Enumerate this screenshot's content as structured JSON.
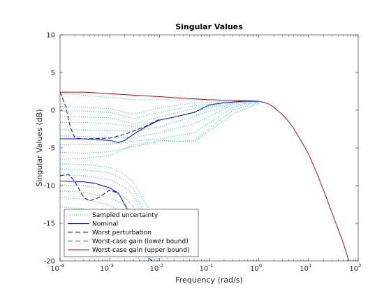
{
  "chart_data": {
    "type": "line",
    "title": "Singular Values",
    "xlabel": "Frequency (rad/s)",
    "ylabel": "Singular Values (dB)",
    "xscale": "log",
    "xlim": [
      0.0001,
      100
    ],
    "ylim": [
      -20,
      10
    ],
    "x_ticks": [
      {
        "value": 0.0001,
        "base": "10",
        "exp": "-4"
      },
      {
        "value": 0.001,
        "base": "10",
        "exp": "-3"
      },
      {
        "value": 0.01,
        "base": "10",
        "exp": "-2"
      },
      {
        "value": 0.1,
        "base": "10",
        "exp": "-1"
      },
      {
        "value": 1,
        "base": "10",
        "exp": "0"
      },
      {
        "value": 10,
        "base": "10",
        "exp": "1"
      },
      {
        "value": 100,
        "base": "10",
        "exp": "2"
      }
    ],
    "y_ticks": [
      {
        "value": 10,
        "label": "10"
      },
      {
        "value": 5,
        "label": "5"
      },
      {
        "value": 0,
        "label": "0"
      },
      {
        "value": -5,
        "label": "-5"
      },
      {
        "value": -10,
        "label": "-10"
      },
      {
        "value": -15,
        "label": "-15"
      },
      {
        "value": -20,
        "label": "-20"
      }
    ],
    "grid": false,
    "legend_position": "bottom-left",
    "series": [
      {
        "name": "Sampled uncertainty",
        "color": "#00bfbf",
        "style": "dotted",
        "curves": [
          [
            [
              0.0001,
              2.3
            ],
            [
              0.0003,
              2.0
            ],
            [
              0.001,
              1.7
            ],
            [
              0.003,
              1.4
            ],
            [
              0.01,
              1.4
            ],
            [
              0.05,
              1.4
            ],
            [
              0.3,
              1.3
            ],
            [
              1,
              1.2
            ]
          ],
          [
            [
              0.0001,
              0.5
            ],
            [
              0.0003,
              0.4
            ],
            [
              0.001,
              0.2
            ],
            [
              0.003,
              -0.5
            ],
            [
              0.01,
              0.3
            ],
            [
              0.05,
              1.0
            ],
            [
              0.3,
              1.2
            ],
            [
              1,
              1.2
            ]
          ],
          [
            [
              0.0001,
              -0.1
            ],
            [
              0.0003,
              -0.1
            ],
            [
              0.001,
              -0.3
            ],
            [
              0.003,
              -1.1
            ],
            [
              0.01,
              -0.3
            ],
            [
              0.05,
              0.6
            ],
            [
              0.3,
              1.1
            ],
            [
              1,
              1.2
            ]
          ],
          [
            [
              0.0001,
              -0.9
            ],
            [
              0.0003,
              -0.9
            ],
            [
              0.001,
              -1.0
            ],
            [
              0.003,
              -1.8
            ],
            [
              0.01,
              -0.9
            ],
            [
              0.05,
              0.2
            ],
            [
              0.3,
              1.1
            ],
            [
              1,
              1.2
            ]
          ],
          [
            [
              0.0001,
              -1.6
            ],
            [
              0.0003,
              -1.6
            ],
            [
              0.001,
              -1.8
            ],
            [
              0.003,
              -2.2
            ],
            [
              0.01,
              -1.4
            ],
            [
              0.05,
              -0.2
            ],
            [
              0.3,
              1.0
            ],
            [
              1,
              1.2
            ]
          ],
          [
            [
              0.0001,
              -2.6
            ],
            [
              0.0003,
              -2.6
            ],
            [
              0.001,
              -2.7
            ],
            [
              0.003,
              -2.8
            ],
            [
              0.01,
              -2.2
            ],
            [
              0.05,
              -0.8
            ],
            [
              0.3,
              0.9
            ],
            [
              1,
              1.2
            ]
          ],
          [
            [
              0.0001,
              -3.4
            ],
            [
              0.0003,
              -3.5
            ],
            [
              0.001,
              -3.6
            ],
            [
              0.003,
              -3.6
            ],
            [
              0.01,
              -3.0
            ],
            [
              0.05,
              -1.8
            ],
            [
              0.3,
              0.7
            ],
            [
              1,
              1.1
            ]
          ],
          [
            [
              0.0001,
              -4.6
            ],
            [
              0.0003,
              -4.6
            ],
            [
              0.001,
              -4.5
            ],
            [
              0.003,
              -4.1
            ],
            [
              0.01,
              -3.8
            ],
            [
              0.05,
              -3.0
            ],
            [
              0.3,
              0.4
            ],
            [
              1,
              1.1
            ]
          ],
          [
            [
              0.0001,
              -5.6
            ],
            [
              0.0003,
              -5.7
            ],
            [
              0.001,
              -5.5
            ],
            [
              0.003,
              -4.8
            ],
            [
              0.01,
              -4.2
            ],
            [
              0.05,
              -4.0
            ],
            [
              0.3,
              0.0
            ],
            [
              1,
              1.0
            ]
          ],
          [
            [
              0.0001,
              -6.5
            ],
            [
              0.0003,
              -6.4
            ],
            [
              0.001,
              -6.0
            ],
            [
              0.003,
              -4.6
            ],
            [
              0.01,
              -4.0
            ],
            [
              0.05,
              -4.2
            ],
            [
              0.3,
              -0.5
            ],
            [
              1,
              0.9
            ]
          ],
          [
            [
              0.0001,
              -7.1
            ],
            [
              0.0003,
              -7.2
            ],
            [
              0.001,
              -7.6
            ],
            [
              0.002,
              -8.5
            ],
            [
              0.003,
              -9.6
            ],
            [
              0.006,
              -13.0
            ],
            [
              0.01,
              -17.0
            ],
            [
              0.015,
              -20.0
            ]
          ],
          [
            [
              0.0001,
              -7.8
            ],
            [
              0.0003,
              -7.9
            ],
            [
              0.001,
              -8.3
            ],
            [
              0.002,
              -9.3
            ],
            [
              0.003,
              -10.4
            ],
            [
              0.005,
              -13.8
            ],
            [
              0.008,
              -17.5
            ],
            [
              0.012,
              -20.0
            ]
          ],
          [
            [
              0.0001,
              -8.6
            ],
            [
              0.0003,
              -8.7
            ],
            [
              0.001,
              -9.2
            ],
            [
              0.002,
              -10.2
            ],
            [
              0.003,
              -11.3
            ],
            [
              0.005,
              -14.6
            ],
            [
              0.007,
              -17.8
            ],
            [
              0.01,
              -20.0
            ]
          ],
          [
            [
              0.0001,
              -9.9
            ],
            [
              0.0003,
              -10.0
            ],
            [
              0.001,
              -10.6
            ],
            [
              0.002,
              -11.6
            ],
            [
              0.003,
              -12.8
            ],
            [
              0.004,
              -14.8
            ],
            [
              0.006,
              -17.6
            ],
            [
              0.008,
              -20.0
            ]
          ],
          [
            [
              0.0001,
              -10.7
            ],
            [
              0.0003,
              -10.9
            ],
            [
              0.001,
              -11.6
            ],
            [
              0.002,
              -12.6
            ],
            [
              0.003,
              -13.7
            ],
            [
              0.004,
              -15.7
            ],
            [
              0.005,
              -17.8
            ],
            [
              0.007,
              -20.0
            ]
          ],
          [
            [
              0.0001,
              -11.6
            ],
            [
              0.0003,
              -11.8
            ],
            [
              0.001,
              -12.6
            ],
            [
              0.002,
              -13.8
            ],
            [
              0.003,
              -15.0
            ],
            [
              0.004,
              -16.8
            ],
            [
              0.005,
              -18.6
            ],
            [
              0.006,
              -20.0
            ]
          ],
          [
            [
              0.0001,
              -12.8
            ],
            [
              0.0003,
              -13.1
            ],
            [
              0.001,
              -14.0
            ],
            [
              0.0015,
              -15.0
            ],
            [
              0.002,
              -16.1
            ],
            [
              0.003,
              -17.8
            ],
            [
              0.004,
              -20.0
            ]
          ]
        ]
      },
      {
        "name": "Nominal",
        "color": "#0000ff",
        "style": "solid",
        "curves": [
          [
            [
              0.0001,
              -3.8
            ],
            [
              0.0003,
              -3.8
            ],
            [
              0.001,
              -4.0
            ],
            [
              0.0015,
              -4.3
            ],
            [
              0.002,
              -4.0
            ],
            [
              0.003,
              -3.2
            ],
            [
              0.005,
              -2.3
            ],
            [
              0.01,
              -1.3
            ],
            [
              0.02,
              -0.9
            ],
            [
              0.05,
              -0.3
            ],
            [
              0.1,
              0.7
            ],
            [
              0.2,
              1.0
            ],
            [
              0.5,
              1.2
            ],
            [
              1,
              1.2
            ]
          ],
          [
            [
              0.0001,
              -9.4
            ],
            [
              0.0003,
              -9.5
            ],
            [
              0.0005,
              -9.7
            ],
            [
              0.001,
              -10.3
            ],
            [
              0.0015,
              -11.0
            ],
            [
              0.002,
              -12.5
            ],
            [
              0.003,
              -14.8
            ]
          ],
          [
            [
              0.006,
              -19.6
            ],
            [
              0.007,
              -20.0
            ]
          ]
        ]
      },
      {
        "name": "Worst perturbation",
        "color": "#0000ff",
        "style": "dashed",
        "curves": [
          [
            [
              0.0001,
              2.4
            ],
            [
              0.00013,
              0.5
            ],
            [
              0.00016,
              -2.2
            ],
            [
              0.0002,
              -3.7
            ],
            [
              0.0003,
              -3.8
            ],
            [
              0.001,
              -3.7
            ],
            [
              0.002,
              -3.2
            ],
            [
              0.005,
              -2.2
            ],
            [
              0.01,
              -1.2
            ]
          ],
          [
            [
              0.0001,
              -8.7
            ],
            [
              0.00015,
              -8.5
            ],
            [
              0.0002,
              -9.5
            ],
            [
              0.0003,
              -11.6
            ],
            [
              0.0004,
              -12.0
            ],
            [
              0.0006,
              -11.6
            ],
            [
              0.001,
              -10.6
            ],
            [
              0.0015,
              -11.0
            ]
          ]
        ]
      },
      {
        "name": "Worst-case gain (lower bound)",
        "color": "#ff0000",
        "style": "dashed",
        "curves": []
      },
      {
        "name": "Worst-case gain (upper bound)",
        "color": "#cc0000",
        "style": "solid",
        "curves": [
          [
            [
              0.0001,
              2.4
            ],
            [
              0.0003,
              2.4
            ],
            [
              0.001,
              2.2
            ],
            [
              0.003,
              2.0
            ],
            [
              0.01,
              1.8
            ],
            [
              0.03,
              1.6
            ],
            [
              0.1,
              1.4
            ],
            [
              0.3,
              1.3
            ],
            [
              0.5,
              1.25
            ],
            [
              1,
              1.2
            ]
          ]
        ]
      }
    ],
    "rolloff": {
      "color": "#aa3355",
      "points": [
        [
          1,
          1.2
        ],
        [
          1.5,
          0.9
        ],
        [
          2,
          0.4
        ],
        [
          3,
          -0.6
        ],
        [
          4,
          -1.5
        ],
        [
          5,
          -2.4
        ],
        [
          7,
          -4.0
        ],
        [
          10,
          -5.8
        ],
        [
          15,
          -8.5
        ],
        [
          20,
          -10.6
        ],
        [
          30,
          -13.7
        ],
        [
          50,
          -17.6
        ],
        [
          65,
          -20.0
        ]
      ]
    }
  }
}
